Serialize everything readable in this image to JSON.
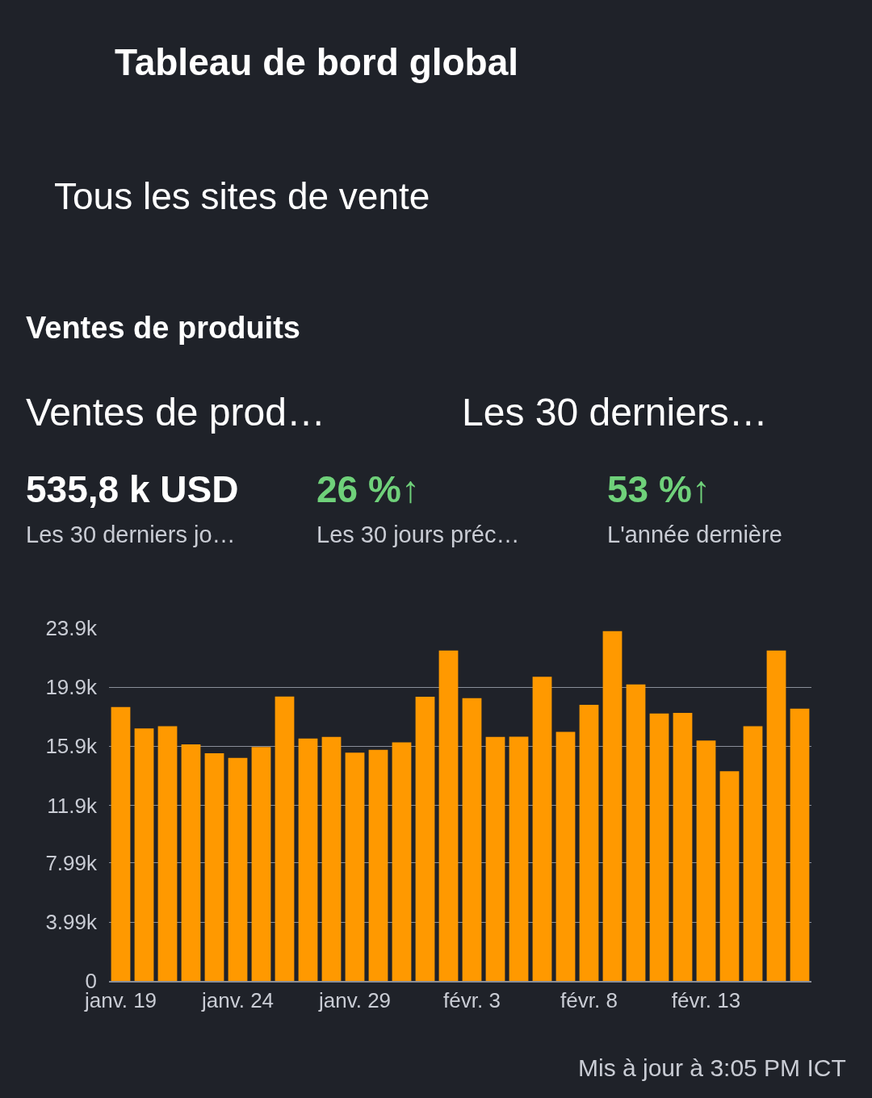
{
  "chart_data": {
    "type": "bar",
    "title": "Tableau de bord global",
    "subtitle": "Tous les sites de vente",
    "annotations": [
      "Ventes de produits",
      "Ventes de prod…",
      "Les 30 derniers…",
      "535,8 k USD",
      "Les 30 derniers jo…",
      "26 %↑",
      "Les 30 jours préc…",
      "53 %↑",
      "L'année dernière",
      "Mis à jour à 3:05 PM ICT"
    ],
    "categories": [
      "janv. 19",
      null,
      null,
      null,
      null,
      "janv. 24",
      null,
      null,
      null,
      null,
      "janv. 29",
      null,
      null,
      null,
      null,
      "févr. 3",
      null,
      null,
      null,
      null,
      "févr. 8",
      null,
      null,
      null,
      null,
      "févr. 13",
      null,
      null,
      null,
      null
    ],
    "values": [
      18.55,
      17.1,
      17.26,
      16.02,
      15.42,
      15.11,
      15.85,
      19.27,
      16.42,
      16.53,
      15.46,
      15.65,
      16.16,
      19.25,
      22.38,
      19.15,
      16.53,
      16.55,
      20.6,
      16.87,
      18.7,
      23.7,
      20.09,
      18.12,
      18.16,
      16.28,
      14.21,
      17.26,
      22.38,
      18.45
    ],
    "color": "#ff9900",
    "ylim": [
      0,
      23.9
    ],
    "yticks": [
      0,
      {
        "value": 3.99,
        "label": "3.99k"
      },
      {
        "value": 7.99,
        "label": "7.99k"
      },
      {
        "value": 11.9,
        "label": "11.9k"
      },
      {
        "value": 15.9,
        "label": "15.9k"
      },
      {
        "value": 19.9,
        "label": "19.9k"
      },
      {
        "value": 23.9,
        "label": "23.9k"
      }
    ],
    "grid": "y"
  }
}
